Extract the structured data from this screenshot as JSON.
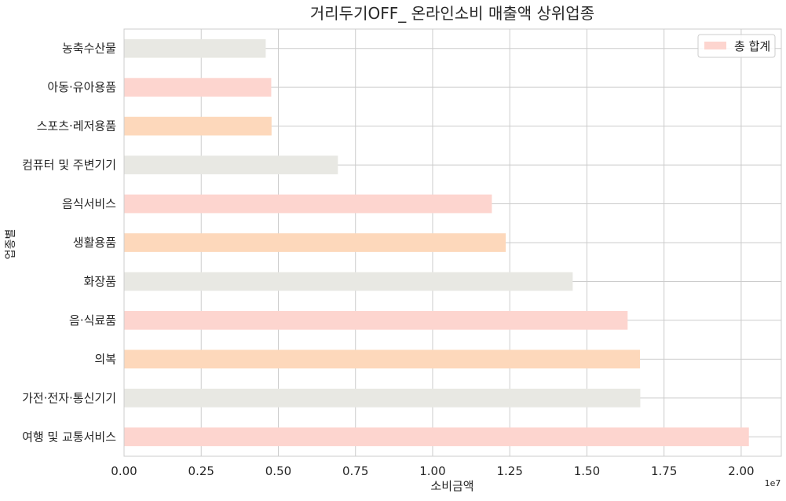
{
  "chart_data": {
    "type": "bar",
    "orientation": "horizontal",
    "title": "거리두기OFF_ 온라인소비 매출액 상위업종",
    "xlabel": "소비금액",
    "ylabel": "업종별",
    "x_offset_text": "1e7",
    "xlim": [
      0,
      21300000
    ],
    "x_ticks": [
      0,
      2500000,
      5000000,
      7500000,
      10000000,
      12500000,
      15000000,
      17500000,
      20000000
    ],
    "x_tick_labels": [
      "0.00",
      "0.25",
      "0.50",
      "0.75",
      "1.00",
      "1.25",
      "1.50",
      "1.75",
      "2.00"
    ],
    "grid": true,
    "legend_position": "top-right",
    "categories": [
      "여행 및 교통서비스",
      "가전·전자·통신기기",
      "의복",
      "음·식료품",
      "화장품",
      "생활용품",
      "음식서비스",
      "컴퓨터 및 주변기기",
      "스포츠·레저용품",
      "아동·유아용품",
      "농축수산물"
    ],
    "series": [
      {
        "name": "총 합계",
        "values": [
          20250000,
          16730000,
          16720000,
          16320000,
          14540000,
          12370000,
          11920000,
          6930000,
          4780000,
          4770000,
          4590000
        ],
        "colors": [
          "#fdd5cf",
          "#e8e8e3",
          "#fdd8bb",
          "#fdd5cf",
          "#e8e8e3",
          "#fdd8bb",
          "#fdd5cf",
          "#e8e8e3",
          "#fdd8bb",
          "#fdd5cf",
          "#e8e8e3"
        ],
        "legend_color": "#fdd5cf"
      }
    ]
  }
}
